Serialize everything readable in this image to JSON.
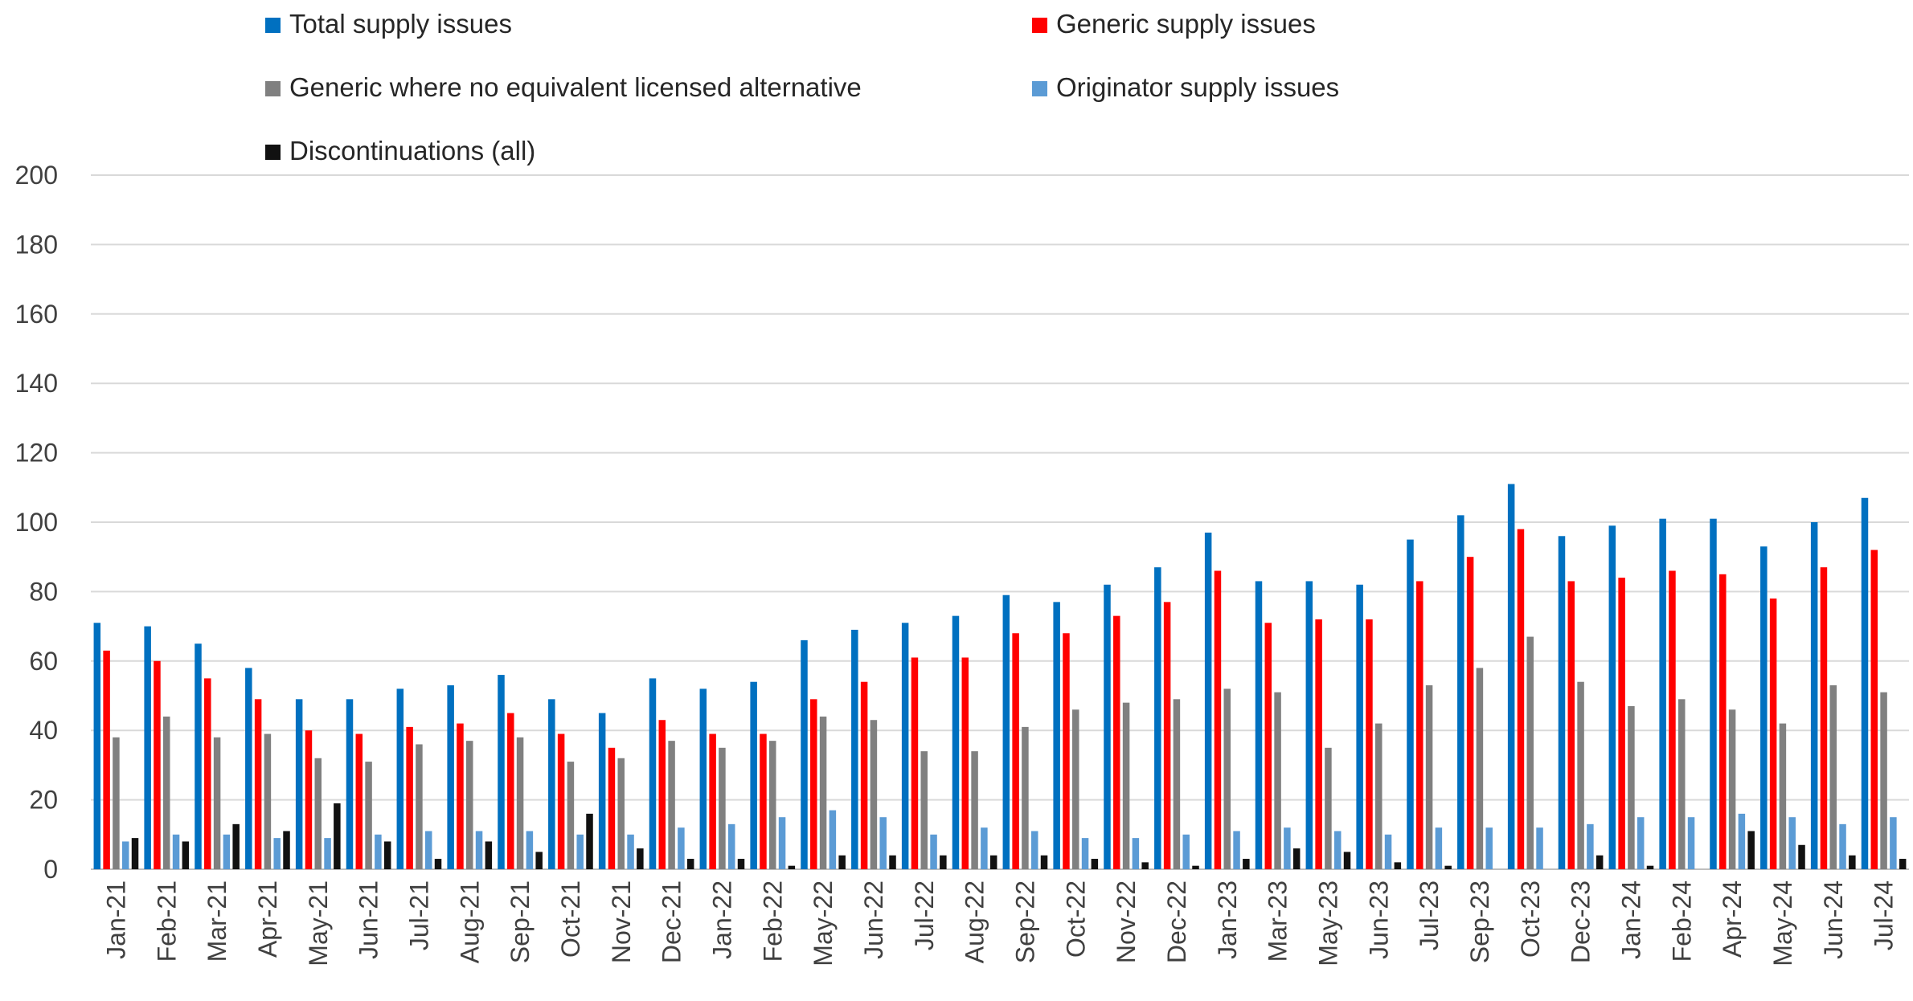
{
  "chart_data": {
    "type": "bar",
    "title": "",
    "xlabel": "",
    "ylabel": "",
    "ylim": [
      0,
      200
    ],
    "yticks": [
      0,
      20,
      40,
      60,
      80,
      100,
      120,
      140,
      160,
      180,
      200
    ],
    "grid": "horizontal",
    "legend_position": "top",
    "categories": [
      "Jan-21",
      "Feb-21",
      "Mar-21",
      "Apr-21",
      "May-21",
      "Jun-21",
      "Jul-21",
      "Aug-21",
      "Sep-21",
      "Oct-21",
      "Nov-21",
      "Dec-21",
      "Jan-22",
      "Feb-22",
      "May-22",
      "Jun-22",
      "Jul-22",
      "Aug-22",
      "Sep-22",
      "Oct-22",
      "Nov-22",
      "Dec-22",
      "Jan-23",
      "Mar-23",
      "May-23",
      "Jun-23",
      "Jul-23",
      "Sep-23",
      "Oct-23",
      "Dec-23",
      "Jan-24",
      "Feb-24",
      "Apr-24",
      "May-24",
      "Jun-24",
      "Jul-24"
    ],
    "series": [
      {
        "name": "Total supply issues",
        "color": "#0070C0",
        "values": [
          71,
          70,
          65,
          58,
          49,
          49,
          52,
          53,
          56,
          49,
          45,
          55,
          52,
          54,
          66,
          69,
          71,
          73,
          79,
          77,
          82,
          87,
          97,
          83,
          83,
          82,
          95,
          102,
          111,
          96,
          99,
          101,
          101,
          93,
          100,
          107
        ]
      },
      {
        "name": "Generic supply issues",
        "color": "#FF0000",
        "values": [
          63,
          60,
          55,
          49,
          40,
          39,
          41,
          42,
          45,
          39,
          35,
          43,
          39,
          39,
          49,
          54,
          61,
          61,
          68,
          68,
          73,
          77,
          86,
          71,
          72,
          72,
          83,
          90,
          98,
          83,
          84,
          86,
          85,
          78,
          87,
          92
        ]
      },
      {
        "name": "Generic where no equivalent licensed alternative",
        "color": "#808080",
        "values": [
          38,
          44,
          38,
          39,
          32,
          31,
          36,
          37,
          38,
          31,
          32,
          37,
          35,
          37,
          44,
          43,
          34,
          34,
          41,
          46,
          48,
          49,
          52,
          51,
          35,
          42,
          53,
          58,
          67,
          54,
          47,
          49,
          46,
          42,
          53,
          51
        ]
      },
      {
        "name": "Originator supply issues",
        "color": "#5B9BD5",
        "values": [
          8,
          10,
          10,
          9,
          9,
          10,
          11,
          11,
          11,
          10,
          10,
          12,
          13,
          15,
          17,
          15,
          10,
          12,
          11,
          9,
          9,
          10,
          11,
          12,
          11,
          10,
          12,
          12,
          12,
          13,
          15,
          15,
          16,
          15,
          13,
          15
        ]
      },
      {
        "name": "Discontinuations (all)",
        "color": "#111111",
        "values": [
          9,
          8,
          13,
          11,
          19,
          8,
          3,
          8,
          5,
          16,
          6,
          3,
          3,
          1,
          4,
          4,
          4,
          4,
          4,
          3,
          2,
          1,
          3,
          6,
          5,
          2,
          1,
          0,
          0,
          4,
          1,
          0,
          11,
          7,
          4,
          3
        ]
      }
    ]
  }
}
